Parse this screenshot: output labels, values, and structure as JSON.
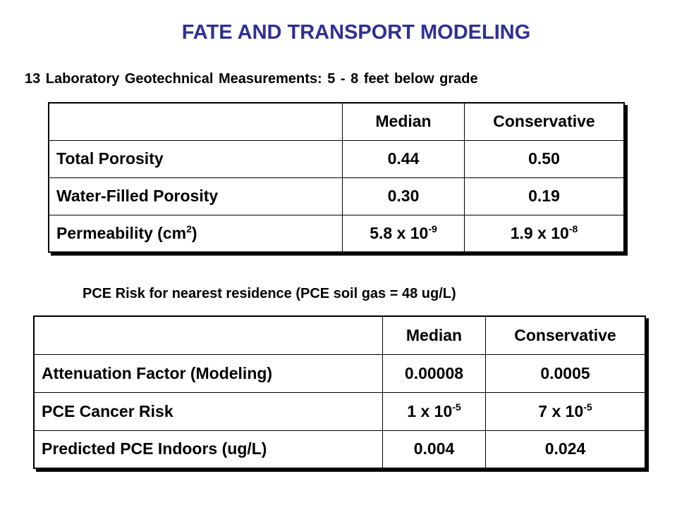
{
  "header": {
    "title": "FATE AND TRANSPORT MODELING",
    "subtitle": "13 Laboratory Geotechnical Measurements:  5 - 8 feet below grade"
  },
  "table1": {
    "columns": [
      "Median",
      "Conservative"
    ],
    "rows": [
      {
        "label": "Total Porosity",
        "values": [
          "0.44",
          "0.50"
        ]
      },
      {
        "label": "Water-Filled Porosity",
        "values": [
          "0.30",
          "0.19"
        ]
      },
      {
        "label": {
          "text": "Permeability (cm",
          "sup": "2",
          "tail": ")"
        },
        "values": [
          {
            "text": "5.8 x 10",
            "sup": "-9"
          },
          {
            "text": "1.9 x 10",
            "sup": "-8"
          }
        ]
      }
    ]
  },
  "caption2": "PCE Risk for nearest residence (PCE soil gas = 48 ug/L)",
  "table2": {
    "columns": [
      "Median",
      "Conservative"
    ],
    "rows": [
      {
        "label": "Attenuation Factor (Modeling)",
        "values": [
          "0.00008",
          "0.0005"
        ]
      },
      {
        "label": "PCE Cancer Risk",
        "values": [
          {
            "text": "1 x 10",
            "sup": "-5"
          },
          {
            "text": "7 x 10",
            "sup": "-5"
          }
        ]
      },
      {
        "label": "Predicted PCE Indoors (ug/L)",
        "values": [
          "0.004",
          "0.024"
        ]
      }
    ]
  }
}
